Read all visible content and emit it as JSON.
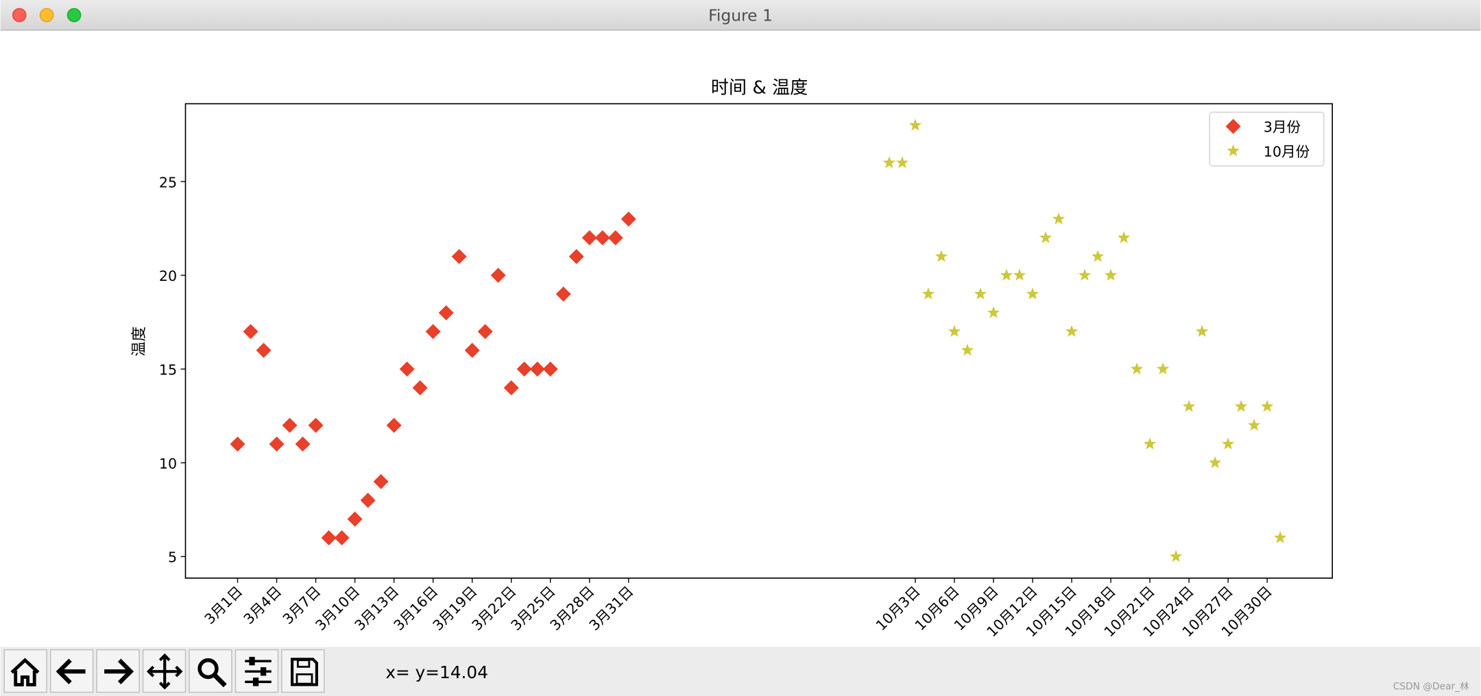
{
  "window": {
    "title": "Figure 1",
    "status": "x= y=14.04",
    "watermark": "CSDN @Dear_林"
  },
  "chart_data": {
    "type": "scatter",
    "title": "时间 & 温度",
    "y_label": "温度",
    "xlim": [
      -3,
      85
    ],
    "ylim": [
      3.85,
      29.15
    ],
    "xticks": [
      {
        "value": 1,
        "label": "3月1日"
      },
      {
        "value": 4,
        "label": "3月4日"
      },
      {
        "value": 7,
        "label": "3月7日"
      },
      {
        "value": 10,
        "label": "3月10日"
      },
      {
        "value": 13,
        "label": "3月13日"
      },
      {
        "value": 16,
        "label": "3月16日"
      },
      {
        "value": 19,
        "label": "3月19日"
      },
      {
        "value": 22,
        "label": "3月22日"
      },
      {
        "value": 25,
        "label": "3月25日"
      },
      {
        "value": 28,
        "label": "3月28日"
      },
      {
        "value": 31,
        "label": "3月31日"
      },
      {
        "value": 53,
        "label": "10月3日"
      },
      {
        "value": 56,
        "label": "10月6日"
      },
      {
        "value": 59,
        "label": "10月9日"
      },
      {
        "value": 62,
        "label": "10月12日"
      },
      {
        "value": 65,
        "label": "10月15日"
      },
      {
        "value": 68,
        "label": "10月18日"
      },
      {
        "value": 71,
        "label": "10月21日"
      },
      {
        "value": 74,
        "label": "10月24日"
      },
      {
        "value": 77,
        "label": "10月27日"
      },
      {
        "value": 80,
        "label": "10月30日"
      }
    ],
    "yticks": [
      5,
      10,
      15,
      20,
      25
    ],
    "legend": "upper right",
    "series": [
      {
        "name": "3月份",
        "color": "#e8402a",
        "marker": "diamond",
        "x": [
          1,
          2,
          3,
          4,
          5,
          6,
          7,
          8,
          9,
          10,
          11,
          12,
          13,
          14,
          15,
          16,
          17,
          18,
          19,
          20,
          21,
          22,
          23,
          24,
          25,
          26,
          27,
          28,
          29,
          30,
          31
        ],
        "values": [
          11,
          17,
          16,
          11,
          12,
          11,
          12,
          6,
          6,
          7,
          8,
          9,
          12,
          15,
          14,
          17,
          18,
          21,
          16,
          17,
          20,
          14,
          15,
          15,
          15,
          19,
          21,
          22,
          22,
          22,
          23
        ]
      },
      {
        "name": "10月份",
        "color": "#cdc83c",
        "marker": "star",
        "x": [
          51,
          52,
          53,
          54,
          55,
          56,
          57,
          58,
          59,
          60,
          61,
          62,
          63,
          64,
          65,
          66,
          67,
          68,
          69,
          70,
          71,
          72,
          73,
          74,
          75,
          76,
          77,
          78,
          79,
          80,
          81
        ],
        "values": [
          26,
          26,
          28,
          19,
          21,
          17,
          16,
          19,
          18,
          20,
          20,
          19,
          22,
          23,
          17,
          20,
          21,
          20,
          22,
          15,
          11,
          15,
          5,
          13,
          17,
          10,
          11,
          13,
          12,
          13,
          6
        ]
      }
    ]
  }
}
